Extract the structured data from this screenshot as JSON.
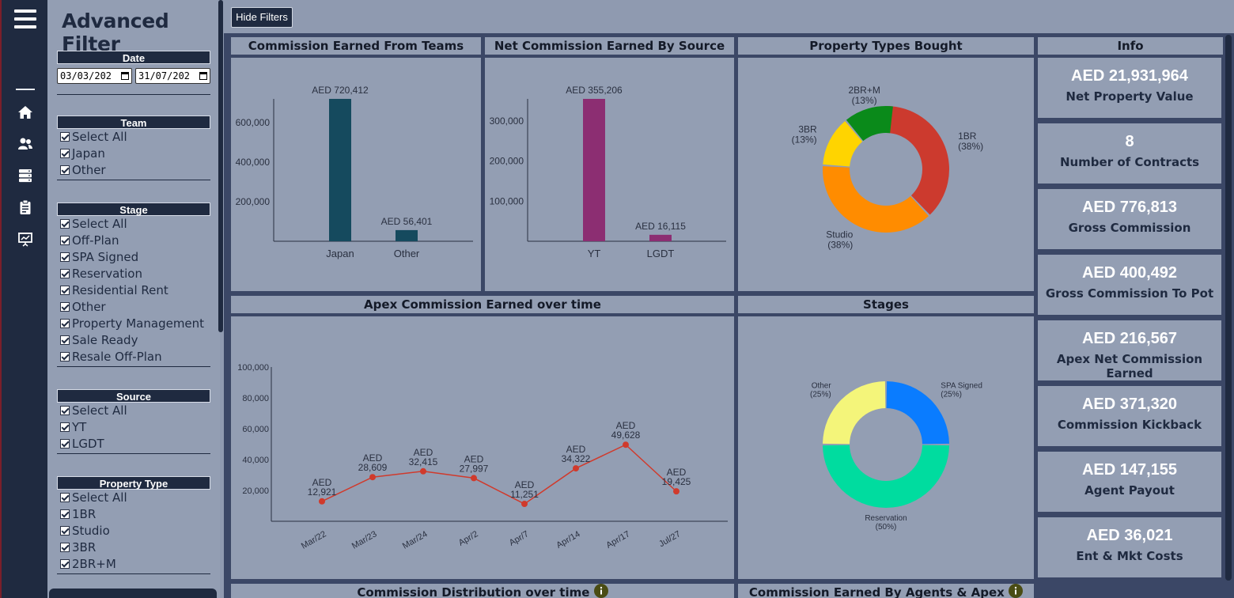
{
  "sidebar": {
    "title": "Advanced Filter",
    "nav_icons": [
      "menu-icon",
      "home-icon",
      "users-icon",
      "server-icon",
      "clipboard-icon",
      "presentation-icon"
    ]
  },
  "filters": {
    "date": {
      "label": "Date",
      "from": "03/03/202",
      "to": "31/07/202"
    },
    "team": {
      "label": "Team",
      "options": [
        "Select All",
        "Japan",
        "Other"
      ]
    },
    "stage": {
      "label": "Stage",
      "options": [
        "Select All",
        "Off-Plan",
        "SPA Signed",
        "Reservation",
        "Residential Rent",
        "Other",
        "Property Management",
        "Sale Ready",
        "Resale Off-Plan"
      ]
    },
    "source": {
      "label": "Source",
      "options": [
        "Select All",
        "YT",
        "LGDT"
      ]
    },
    "property_type": {
      "label": "Property Type",
      "options": [
        "Select All",
        "1BR",
        "Studio",
        "3BR",
        "2BR+M"
      ]
    }
  },
  "toolbar": {
    "hide_filters_label": "Hide Filters"
  },
  "panels": {
    "commission_teams": "Commission Earned From Teams",
    "net_commission_source": "Net Commission Earned By Source",
    "property_types": "Property Types Bought",
    "info": "Info",
    "apex_over_time": "Apex Commission Earned over time",
    "stages": "Stages",
    "distribution": "Commission Distribution over time",
    "agents_apex": "Commission Earned By Agents & Apex"
  },
  "info_cards": [
    {
      "value": "AED 21,931,964",
      "label": "Net Property Value"
    },
    {
      "value": "8",
      "label": "Number of Contracts"
    },
    {
      "value": "AED 776,813",
      "label": "Gross Commission"
    },
    {
      "value": "AED 400,492",
      "label": "Gross Commission To Pot"
    },
    {
      "value": "AED 216,567",
      "label": "Apex Net Commission Earned"
    },
    {
      "value": "AED 371,320",
      "label": "Commission Kickback"
    },
    {
      "value": "AED 147,155",
      "label": "Agent Payout"
    },
    {
      "value": "AED 36,021",
      "label": "Ent & Mkt Costs"
    }
  ],
  "chart_data": [
    {
      "type": "bar",
      "title": "Commission Earned From Teams",
      "categories": [
        "Japan",
        "Other"
      ],
      "values": [
        720412,
        56401
      ],
      "labels": [
        "AED 720,412",
        "AED 56,401"
      ],
      "yticks": [
        200000,
        400000,
        600000
      ],
      "ytick_labels": [
        "200,000",
        "400,000",
        "600,000"
      ],
      "ylim": [
        0,
        720412
      ],
      "color": "#154a5e"
    },
    {
      "type": "bar",
      "title": "Net Commission Earned By Source",
      "categories": [
        "YT",
        "LGDT"
      ],
      "values": [
        355206,
        16115
      ],
      "labels": [
        "AED 355,206",
        "AED 16,115"
      ],
      "yticks": [
        100000,
        200000,
        300000
      ],
      "ytick_labels": [
        "100,000",
        "200,000",
        "300,000"
      ],
      "ylim": [
        0,
        355206
      ],
      "color": "#8c2e72"
    },
    {
      "type": "pie",
      "title": "Property Types Bought",
      "slices": [
        {
          "name": "1BR",
          "pct": 38,
          "pct_label": "(38%)",
          "color": "#cc3a2e"
        },
        {
          "name": "Studio",
          "pct": 38,
          "pct_label": "(38%)",
          "color": "#ff8c00"
        },
        {
          "name": "3BR",
          "pct": 13,
          "pct_label": "(13%)",
          "color": "#ffd400"
        },
        {
          "name": "2BR+M",
          "pct": 13,
          "pct_label": "(13%)",
          "color": "#0a8a1a"
        }
      ]
    },
    {
      "type": "line",
      "title": "Apex Commission Earned over time",
      "x": [
        "Mar/22",
        "Mar/23",
        "Mar/24",
        "Apr/2",
        "Apr/7",
        "Apr/14",
        "Apr/17",
        "Jul/27"
      ],
      "values": [
        12921,
        28609,
        32415,
        27997,
        11251,
        34322,
        49628,
        19425
      ],
      "value_labels": [
        "12,921",
        "28,609",
        "32,415",
        "27,997",
        "11,251",
        "34,322",
        "49,628",
        "19,425"
      ],
      "prefix": "AED",
      "yticks": [
        20000,
        40000,
        60000,
        80000,
        100000
      ],
      "ytick_labels": [
        "20,000",
        "40,000",
        "60,000",
        "80,000",
        "100,000"
      ],
      "ylim": [
        0,
        100000
      ],
      "color": "#d03a2c"
    },
    {
      "type": "pie",
      "title": "Stages",
      "slices": [
        {
          "name": "SPA Signed",
          "pct": 25,
          "pct_label": "(25%)",
          "color": "#0a7cff"
        },
        {
          "name": "Reservation",
          "pct": 50,
          "pct_label": "(50%)",
          "color": "#00dc9f"
        },
        {
          "name": "Other",
          "pct": 25,
          "pct_label": "(25%)",
          "color": "#f4f57a"
        }
      ]
    }
  ]
}
